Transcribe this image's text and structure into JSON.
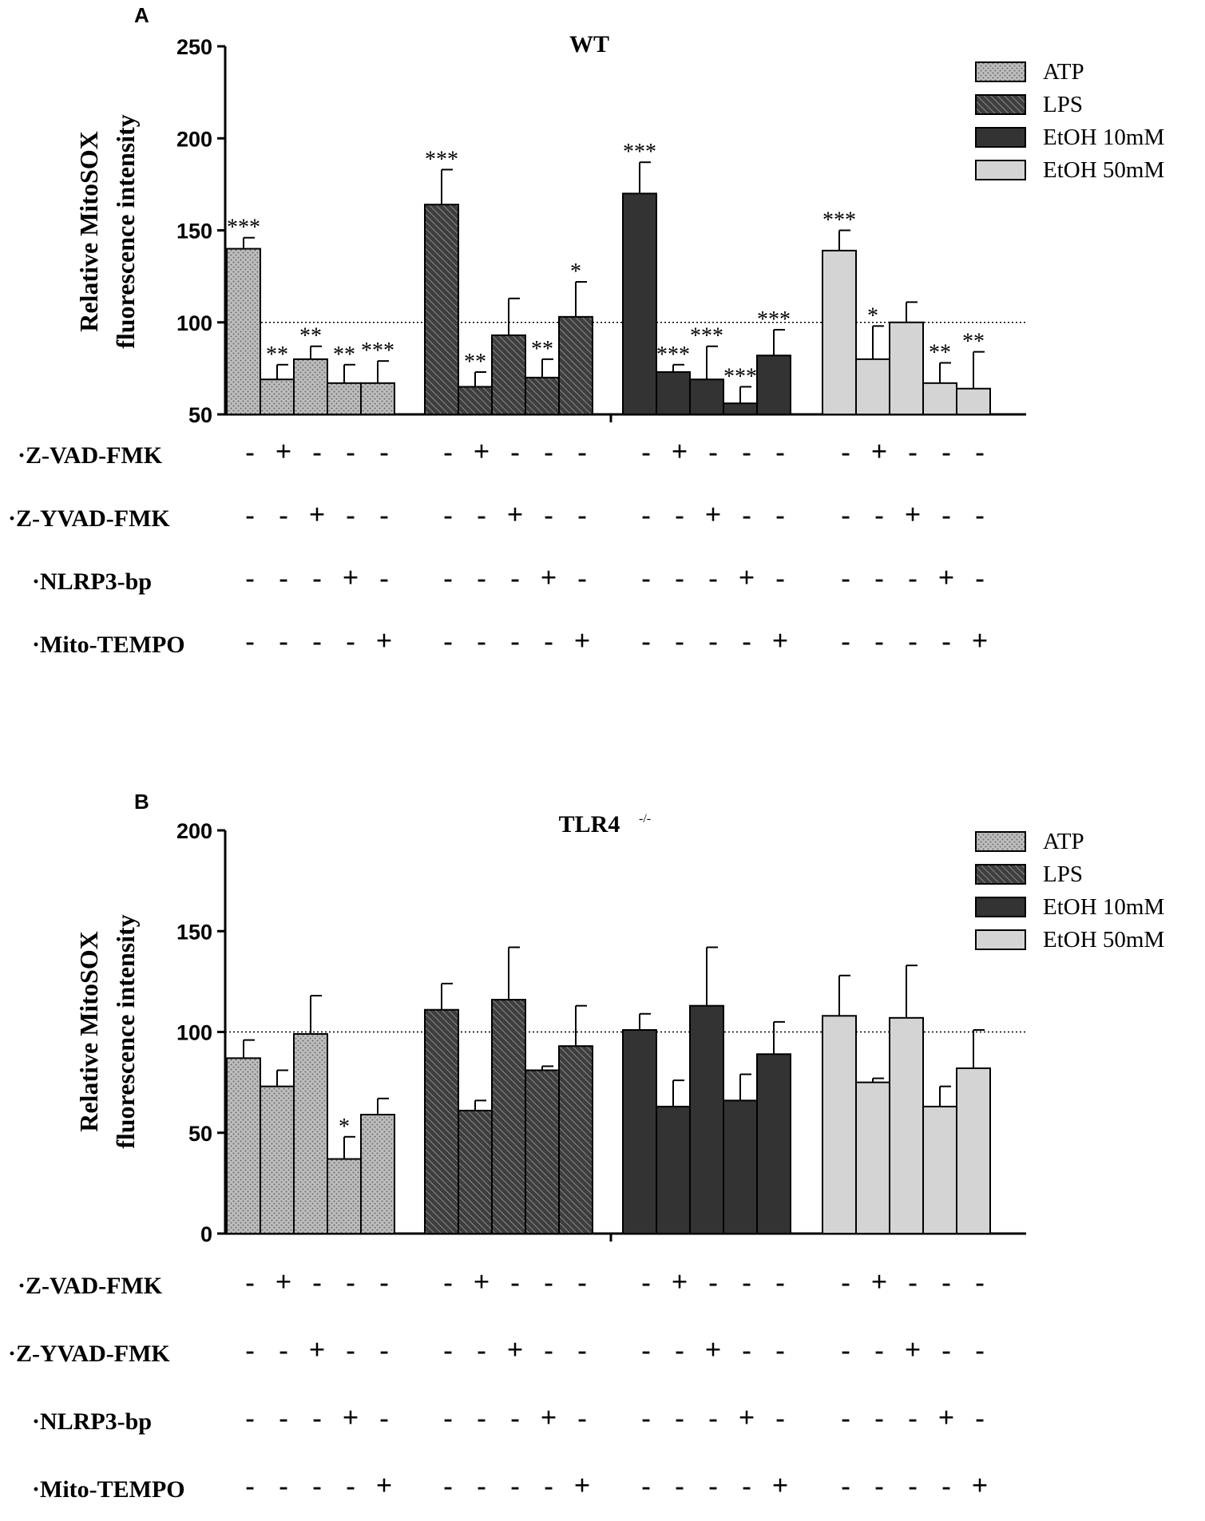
{
  "chart_data": [
    {
      "panel": "A",
      "type": "bar",
      "title": "WT",
      "title_sup": "",
      "ylabel": [
        "Relative MitoSOX",
        "fluorescence intensity"
      ],
      "ylim": [
        50,
        250
      ],
      "yticks": [
        50,
        100,
        150,
        200,
        250
      ],
      "reference_line": 100,
      "legend": [
        "ATP",
        "LPS",
        "EtOH 10mM",
        "EtOH 50mM"
      ],
      "series": [
        {
          "name": "ATP",
          "values": [
            140,
            69,
            80,
            67,
            67
          ],
          "errors": [
            6,
            8,
            7,
            10,
            12
          ],
          "sig": [
            "***",
            "**",
            "**",
            "**",
            "***"
          ]
        },
        {
          "name": "LPS",
          "values": [
            164,
            65,
            93,
            70,
            103
          ],
          "errors": [
            19,
            8,
            20,
            10,
            19
          ],
          "sig": [
            "***",
            "**",
            "",
            "**",
            "*"
          ]
        },
        {
          "name": "EtOH 10mM",
          "values": [
            170,
            73,
            69,
            56,
            82
          ],
          "errors": [
            17,
            4,
            18,
            9,
            14
          ],
          "sig": [
            "***",
            "***",
            "***",
            "***",
            "***"
          ]
        },
        {
          "name": "EtOH 50mM",
          "values": [
            139,
            80,
            100,
            67,
            64
          ],
          "errors": [
            11,
            18,
            11,
            11,
            20
          ],
          "sig": [
            "***",
            "*",
            "",
            "**",
            "**"
          ]
        }
      ],
      "treatments": [
        {
          "label": "·Z-VAD-FMK",
          "signs": [
            "-",
            "+",
            "-",
            "-",
            "-"
          ]
        },
        {
          "label": "·Z-YVAD-FMK",
          "signs": [
            "-",
            "-",
            "+",
            "-",
            "-"
          ]
        },
        {
          "label": "·NLRP3-bp",
          "signs": [
            "-",
            "-",
            "-",
            "+",
            "-"
          ]
        },
        {
          "label": "·Mito-TEMPO",
          "signs": [
            "-",
            "-",
            "-",
            "-",
            "+"
          ]
        }
      ]
    },
    {
      "panel": "B",
      "type": "bar",
      "title": "TLR4",
      "title_sup": "-/-",
      "ylabel": [
        "Relative MitoSOX",
        "fluorescence intensity"
      ],
      "ylim": [
        0,
        200
      ],
      "yticks": [
        0,
        50,
        100,
        150,
        200
      ],
      "reference_line": 100,
      "legend": [
        "ATP",
        "LPS",
        "EtOH 10mM",
        "EtOH 50mM"
      ],
      "series": [
        {
          "name": "ATP",
          "values": [
            87,
            73,
            99,
            37,
            59
          ],
          "errors": [
            9,
            8,
            19,
            11,
            8
          ],
          "sig": [
            "",
            "",
            "",
            "*",
            ""
          ]
        },
        {
          "name": "LPS",
          "values": [
            111,
            61,
            116,
            81,
            93
          ],
          "errors": [
            13,
            5,
            26,
            2,
            20
          ],
          "sig": [
            "",
            "",
            "",
            "",
            ""
          ]
        },
        {
          "name": "EtOH 10mM",
          "values": [
            101,
            63,
            113,
            66,
            89
          ],
          "errors": [
            8,
            13,
            29,
            13,
            16
          ],
          "sig": [
            "",
            "",
            "",
            "",
            ""
          ]
        },
        {
          "name": "EtOH 50mM",
          "values": [
            108,
            75,
            107,
            63,
            82
          ],
          "errors": [
            20,
            2,
            26,
            10,
            19
          ],
          "sig": [
            "",
            "",
            "",
            "",
            ""
          ]
        }
      ],
      "treatments": [
        {
          "label": "·Z-VAD-FMK",
          "signs": [
            "-",
            "+",
            "-",
            "-",
            "-"
          ]
        },
        {
          "label": "·Z-YVAD-FMK",
          "signs": [
            "-",
            "-",
            "+",
            "-",
            "-"
          ]
        },
        {
          "label": "·NLRP3-bp",
          "signs": [
            "-",
            "-",
            "-",
            "+",
            "-"
          ]
        },
        {
          "label": "·Mito-TEMPO",
          "signs": [
            "-",
            "-",
            "-",
            "-",
            "+"
          ]
        }
      ]
    }
  ],
  "colors": {
    "atp_fill": "#b8b8b8",
    "lps_fill": "#5a5a5a",
    "etoh10_fill": "#333333",
    "etoh50_fill": "#d4d4d4",
    "axis": "#000000"
  },
  "series_patterns": [
    "dots",
    "hatch",
    "solid",
    "light"
  ]
}
